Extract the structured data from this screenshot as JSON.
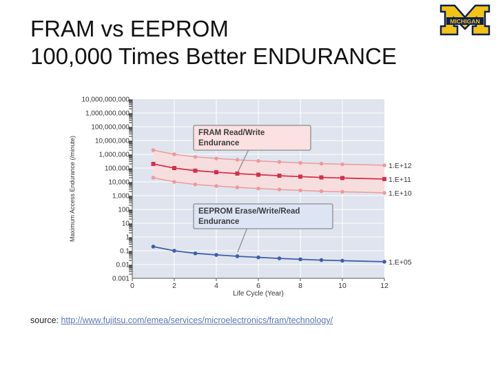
{
  "slide": {
    "title_line1": "FRAM vs EEPROM",
    "title_line2": "100,000 Times Better ENDURANCE",
    "logo_text": "MICHIGAN",
    "source_label": "source:",
    "source_url": "http://www.fujitsu.com/emea/services/microelectronics/fram/technology/"
  },
  "colors": {
    "plot_bg": "#dfe4ee",
    "band_fill": "#f7dede",
    "fram_main": "#d62f4e",
    "fram_band": "#ec9a9e",
    "eeprom": "#3e5ea6",
    "fram_callout_bg": "#fbe1e1",
    "eeprom_callout_bg": "#dde5f5",
    "callout_border": "#8c8c8c",
    "link": "#5a78b6"
  },
  "chart_data": {
    "type": "line",
    "xlabel": "Life Cycle (Year)",
    "ylabel": "Maximum Access Endurance (/minute)",
    "y_scale": "log",
    "xlim": [
      0,
      12
    ],
    "ylim": [
      0.001,
      10000000000
    ],
    "x_ticks": [
      "0",
      "2",
      "4",
      "6",
      "8",
      "10",
      "12"
    ],
    "y_ticks": [
      "10,000,000,000",
      "1,000,000,000",
      "100,000,000",
      "10,000,000",
      "1,000,000",
      "100,000",
      "10,000",
      "1,000",
      "100",
      "10",
      "1",
      "0.1",
      "0.01",
      "0.001"
    ],
    "grid": true,
    "x": [
      1,
      2,
      3,
      4,
      5,
      6,
      7,
      8,
      9,
      10,
      12
    ],
    "series": [
      {
        "label": "1.E+12",
        "role": "fram-upper",
        "values": [
          2000000,
          1000000,
          650000,
          500000,
          400000,
          330000,
          280000,
          240000,
          210000,
          190000,
          160000
        ]
      },
      {
        "label": "1.E+11",
        "role": "fram-main",
        "values": [
          200000,
          100000,
          65000,
          50000,
          40000,
          33000,
          28000,
          24000,
          21000,
          19000,
          16000
        ]
      },
      {
        "label": "1.E+10",
        "role": "fram-lower",
        "values": [
          20000,
          10000,
          6500,
          5000,
          4000,
          3300,
          2800,
          2400,
          2100,
          1900,
          1600
        ]
      },
      {
        "label": "1.E+05",
        "role": "eeprom",
        "values": [
          0.2,
          0.1,
          0.065,
          0.05,
          0.04,
          0.033,
          0.028,
          0.024,
          0.021,
          0.019,
          0.016
        ]
      }
    ],
    "annotations": [
      {
        "line1": "FRAM Read/Write",
        "line2": "Endurance"
      },
      {
        "line1": "EEPROM Erase/Write/Read",
        "line2": "Endurance"
      }
    ]
  }
}
